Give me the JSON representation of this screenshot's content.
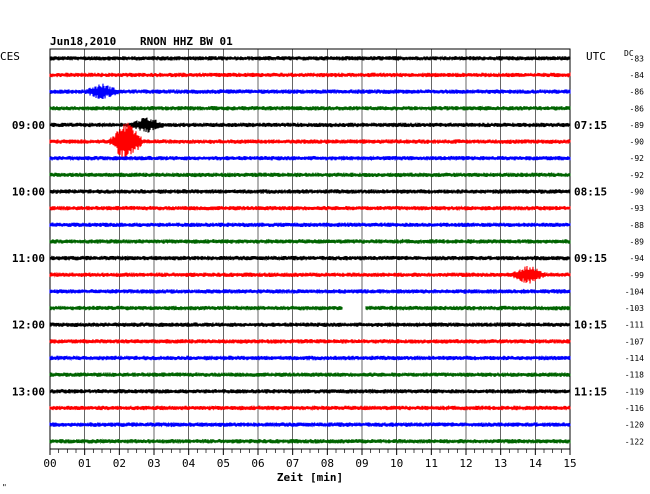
{
  "header": {
    "date": "Jun18,2010",
    "station": "RNON HHZ BW 01",
    "left_tz": "CES",
    "right_tz": "UTC",
    "dc_label": "DC",
    "corner_mark": "\""
  },
  "chart_data": {
    "type": "line",
    "title": "Jun18,2010   RNON HHZ BW 01",
    "xlabel": "Zeit [min]",
    "ylabel": "",
    "x_ticks": [
      "00",
      "01",
      "02",
      "03",
      "04",
      "05",
      "06",
      "07",
      "08",
      "09",
      "10",
      "11",
      "12",
      "13",
      "14",
      "15"
    ],
    "xlim": [
      0,
      15
    ],
    "grid": true,
    "trace_colors": [
      "#000000",
      "#ff0000",
      "#0000ff",
      "#006400"
    ],
    "left_time_labels": [
      {
        "trace": 4,
        "text": "09:00"
      },
      {
        "trace": 8,
        "text": "10:00"
      },
      {
        "trace": 12,
        "text": "11:00"
      },
      {
        "trace": 16,
        "text": "12:00"
      },
      {
        "trace": 20,
        "text": "13:00"
      }
    ],
    "right_time_labels": [
      {
        "trace": 4,
        "text": "07:15"
      },
      {
        "trace": 8,
        "text": "08:15"
      },
      {
        "trace": 12,
        "text": "09:15"
      },
      {
        "trace": 16,
        "text": "10:15"
      },
      {
        "trace": 20,
        "text": "11:15"
      }
    ],
    "dc_offsets": [
      "-83",
      "-84",
      "-86",
      "-86",
      "-89",
      "-90",
      "-92",
      "-92",
      "-90",
      "-93",
      "-88",
      "-89",
      "-94",
      "-99",
      "-104",
      "-103",
      "-111",
      "-107",
      "-114",
      "-118",
      "-119",
      "-116",
      "-120",
      "-122"
    ],
    "events": [
      {
        "trace": 2,
        "minute": 1.5,
        "amplitude": 2.0
      },
      {
        "trace": 4,
        "minute": 2.8,
        "amplitude": 2.0
      },
      {
        "trace": 5,
        "minute": 2.2,
        "amplitude": 6.0
      },
      {
        "trace": 13,
        "minute": 13.8,
        "amplitude": 2.5
      }
    ],
    "gaps": [
      {
        "trace": 15,
        "start_minute": 8.45,
        "end_minute": 9.1
      }
    ]
  }
}
